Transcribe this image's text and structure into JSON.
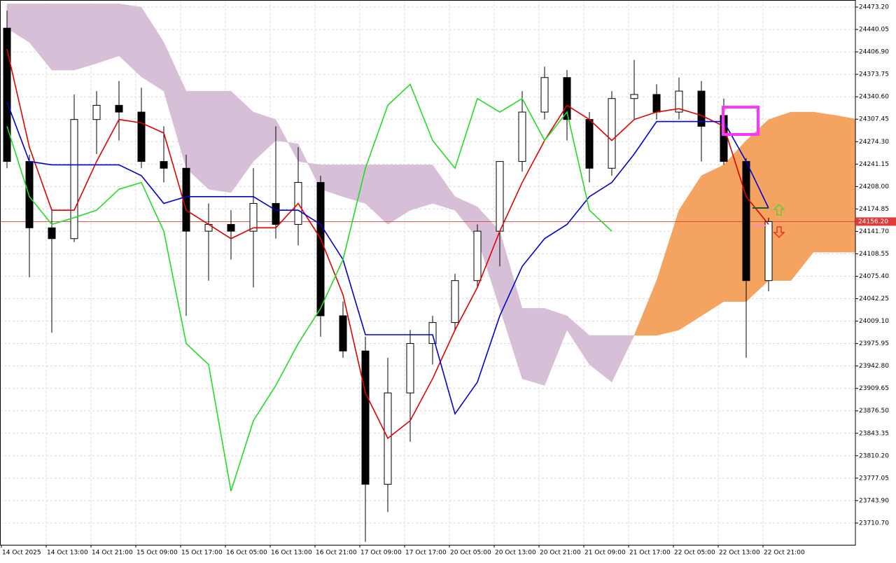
{
  "chart_data": {
    "type": "candlestick",
    "x_labels": [
      "14 Oct 2025",
      "14 Oct 13:00",
      "14 Oct 21:00",
      "15 Oct 09:00",
      "15 Oct 17:00",
      "16 Oct 05:00",
      "16 Oct 13:00",
      "16 Oct 21:00",
      "17 Oct 09:00",
      "17 Oct 17:00",
      "20 Oct 05:00",
      "20 Oct 13:00",
      "20 Oct 21:00",
      "21 Oct 09:00",
      "21 Oct 17:00",
      "22 Oct 05:00",
      "22 Oct 13:00",
      "22 Oct 21:00"
    ],
    "ylim": [
      23678.6,
      24483.6
    ],
    "yticks": [
      {
        "value": 24473.2,
        "label": "24473.20"
      },
      24440.05,
      {
        "value": 24406.9,
        "label": "24406.90"
      },
      24373.75,
      {
        "value": 24340.6,
        "label": "24340.60"
      },
      24307.45,
      {
        "value": 24274.3,
        "label": "24274.30"
      },
      24241.15,
      {
        "value": 24208,
        "label": "24208.00"
      },
      24174.85,
      {
        "value": 24141.7,
        "label": "24141.70"
      },
      24108.55,
      {
        "value": 24075.4,
        "label": "24075.40"
      },
      24042.25,
      {
        "value": 24009.1,
        "label": "24009.10"
      },
      23975.95,
      {
        "value": 23942.8,
        "label": "23942.80"
      },
      23909.65,
      {
        "value": 23876.5,
        "label": "23876.50"
      },
      23843.35,
      {
        "value": 23810.2,
        "label": "23810.20"
      },
      23777.05,
      {
        "value": 23743.9,
        "label": "23743.90"
      },
      {
        "value": 23710.7,
        "label": "23710.70"
      }
    ],
    "grid": true,
    "current_price": {
      "value": 24156.2,
      "label": "24156.20",
      "color": "#e03a3a"
    },
    "candles": {
      "up_color": "#ffffff",
      "down_color": "#000000",
      "open": [
        24442,
        24245,
        24147,
        24131,
        24307,
        24328,
        24318,
        24245,
        24235,
        24142,
        24152,
        24142,
        24183,
        24152,
        24214,
        24017,
        23965,
        23768,
        23903,
        23976,
        24007,
        24069,
        24142,
        24245,
        24318,
        24369,
        24307,
        24235,
        24338,
        24344,
        24318,
        24349,
        24313,
        24245,
        24069
      ],
      "high": [
        24468,
        24255,
        24173,
        24344,
        24349,
        24364,
        24354,
        24297,
        24255,
        24183,
        24173,
        24235,
        24297,
        24266,
        24224,
        24038,
        23986,
        23955,
        23996,
        24017,
        24079,
        24152,
        24173,
        24349,
        24385,
        24380,
        24318,
        24349,
        24395,
        24359,
        24369,
        24364,
        24338,
        24250,
        24162
      ],
      "low": [
        24235,
        24074,
        23992,
        24126,
        24256,
        24276,
        24235,
        24214,
        24017,
        24069,
        24100,
        24059,
        24131,
        24121,
        23986,
        23955,
        23683,
        23727,
        23831,
        23945,
        23996,
        24059,
        24090,
        24230,
        24307,
        24276,
        24214,
        24224,
        24307,
        24307,
        24307,
        24245,
        24240,
        23955,
        24053
      ],
      "close": [
        24245,
        24147,
        24131,
        24307,
        24328,
        24318,
        24245,
        24235,
        24142,
        24152,
        24142,
        24183,
        24152,
        24214,
        24017,
        23965,
        23768,
        23903,
        23976,
        24007,
        24069,
        24142,
        24245,
        24318,
        24369,
        24307,
        24235,
        24338,
        24344,
        24318,
        24349,
        24297,
        24245,
        24069,
        24156.2
      ]
    },
    "lines": [
      {
        "color": "#e00000",
        "values": [
          24411,
          24266,
          24173,
          24173,
          24245,
          24307,
          24302,
          24287,
          24173,
          24152,
          24131,
          24147,
          24147,
          24183,
          24131,
          24048,
          23903,
          23836,
          23862,
          23924,
          23996,
          24059,
          24142,
          24214,
          24276,
          24328,
          24307,
          24276,
          24307,
          24318,
          24323,
          24313,
          24297,
          24193,
          24152
        ]
      },
      {
        "color": "#0000d0",
        "values": [
          24333,
          24245,
          24240,
          24240,
          24240,
          24240,
          24224,
          24183,
          24193,
          24193,
          24193,
          24193,
          24173,
          24173,
          24152,
          24100,
          23989,
          23989,
          23989,
          23989,
          23872,
          23919,
          24017,
          24090,
          24131,
          24152,
          24193,
          24214,
          24256,
          24304,
          24304,
          24304,
          24304,
          24245,
          24176
        ]
      },
      {
        "color": "#22dd22",
        "values": [
          24297,
          24193,
          24152,
          24162,
          24173,
          24204,
          24214,
          24142,
          23976,
          23945,
          23758,
          23862,
          23914,
          23976,
          24028,
          24100,
          24235,
          24328,
          24359,
          24276,
          24235,
          24338,
          24318,
          24338,
          24276,
          24318,
          24173,
          24142,
          null,
          null,
          null,
          null,
          null,
          null,
          null
        ]
      }
    ],
    "cloud": {
      "up_color": "#f4a460",
      "down_color": "#d8bfd8",
      "span_a": [
        24442,
        24421,
        24380,
        24380,
        24390,
        24401,
        24370,
        24349,
        24235,
        24204,
        24199,
        24245,
        24276,
        24271,
        24204,
        24193,
        24183,
        24152,
        24173,
        24183,
        24173,
        24131,
        24028,
        23924,
        23914,
        23996,
        23945,
        23919,
        23988,
        24069,
        24173,
        24224,
        24240,
        24276,
        24307,
        24318,
        24318,
        24313,
        24307
      ],
      "span_b": [
        24478,
        24478,
        24478,
        24478,
        24478,
        24478,
        24473,
        24421,
        24349,
        24349,
        24349,
        24318,
        24307,
        24245,
        24240,
        24240,
        24240,
        24240,
        24240,
        24240,
        24193,
        24178,
        24142,
        24028,
        24028,
        24017,
        23988,
        23988,
        23988,
        23988,
        23996,
        24017,
        24038,
        24038,
        24069,
        24069,
        24111,
        24111,
        24111
      ]
    }
  }
}
